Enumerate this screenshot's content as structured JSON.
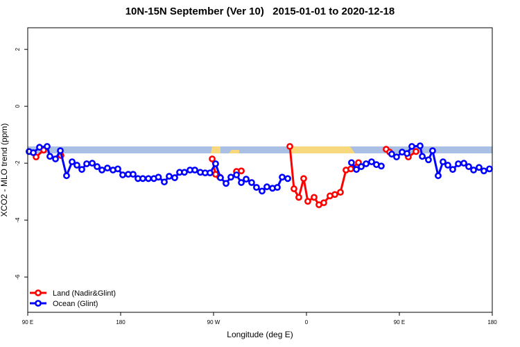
{
  "chart_data": {
    "type": "line",
    "title": "10N-15N September (Ver 10)   2015-01-01 to 2020-12-18",
    "x_label": "Longitude (deg E)",
    "y_label": "XCO2 - MLO trend (ppm)",
    "xlim": [
      90,
      540
    ],
    "xticks": [
      {
        "value": 90,
        "label": "90 E"
      },
      {
        "value": 180,
        "label": "180"
      },
      {
        "value": 270,
        "label": "90 W"
      },
      {
        "value": 360,
        "label": "0"
      },
      {
        "value": 450,
        "label": "90 E"
      },
      {
        "value": 540,
        "label": "180"
      }
    ],
    "ylim": [
      -7.24,
      2.76
    ],
    "yticks": [
      2,
      0,
      -2,
      -4,
      -6
    ],
    "legend": "bottom-left",
    "series": [
      {
        "name": "Land (Nadir&Glint)",
        "color": "#ff0000",
        "x": [
          98.1,
          105.4,
          null,
          122.2,
          null,
          268.7,
          272.0,
          276.0,
          null,
          292.2,
          296.9,
          null,
          343.9,
          347.9,
          352.6,
          357.3,
          361.3,
          367.4,
          372.1,
          376.8,
          382.8,
          387.5,
          392.9,
          398.3,
          403.0,
          410.4,
          null,
          437.2,
          440.6,
          null,
          458.7,
          466.1
        ],
        "values": [
          -1.78,
          -1.54,
          null,
          -1.73,
          null,
          -1.85,
          -2.39,
          -2.49,
          null,
          -2.29,
          -2.27,
          null,
          -1.41,
          -2.9,
          -3.2,
          -2.54,
          -3.34,
          -3.2,
          -3.46,
          -3.39,
          -3.15,
          -3.1,
          -3.02,
          -2.24,
          -2.2,
          -1.98,
          null,
          -1.51,
          -1.61,
          null,
          -1.78,
          -1.59
        ]
      },
      {
        "name": "Ocean (Glint)",
        "color": "#0000ff",
        "x": [
          91.3,
          95.4,
          101.4,
          108.8,
          111.5,
          116.9,
          121.6,
          127.6,
          133.0,
          137.7,
          142.4,
          147.1,
          152.5,
          157.2,
          161.9,
          167.2,
          172.6,
          177.3,
          182.0,
          187.4,
          192.1,
          196.8,
          201.5,
          206.9,
          212.2,
          216.6,
          222.3,
          227.0,
          232.4,
          237.1,
          241.8,
          247.2,
          251.9,
          257.2,
          261.9,
          266.6,
          272.0,
          276.7,
          282.1,
          286.8,
          292.2,
          296.9,
          301.6,
          306.9,
          311.6,
          317.0,
          321.7,
          327.1,
          331.8,
          336.5,
          341.9,
          null,
          403.6,
          408.4,
          413.1,
          417.8,
          423.1,
          427.8,
          432.5,
          null,
          442.6,
          447.3,
          452.7,
          457.4,
          462.1,
          470.1,
          472.2,
          478.2,
          482.2,
          487.6,
          492.3,
          497.0,
          501.7,
          507.1,
          512.5,
          517.2,
          521.9,
          527.2,
          531.9,
          537.3
        ],
        "values": [
          -1.59,
          -1.63,
          -1.44,
          -1.41,
          -1.76,
          -1.85,
          -1.56,
          -2.44,
          -1.95,
          -2.07,
          -2.22,
          -2.02,
          -2.0,
          -2.12,
          -2.24,
          -2.17,
          -2.24,
          -2.2,
          -2.41,
          -2.39,
          -2.39,
          -2.54,
          -2.54,
          -2.54,
          -2.54,
          -2.49,
          -2.66,
          -2.46,
          -2.51,
          -2.32,
          -2.32,
          -2.24,
          -2.24,
          -2.32,
          -2.34,
          -2.34,
          -2.02,
          -2.51,
          -2.71,
          -2.49,
          -2.41,
          -2.68,
          -2.56,
          -2.68,
          -2.85,
          -2.98,
          -2.83,
          -2.88,
          -2.85,
          -2.49,
          -2.54,
          null,
          -1.98,
          -2.22,
          -2.12,
          -2.02,
          -1.95,
          -2.05,
          -2.1,
          null,
          -1.68,
          -1.78,
          -1.61,
          -1.66,
          -1.41,
          -1.39,
          -1.76,
          -1.88,
          -1.56,
          -2.44,
          -1.95,
          -2.07,
          -2.22,
          -2.02,
          -2.0,
          -2.12,
          -2.24,
          -2.15,
          -2.27,
          -2.2
        ]
      }
    ]
  }
}
